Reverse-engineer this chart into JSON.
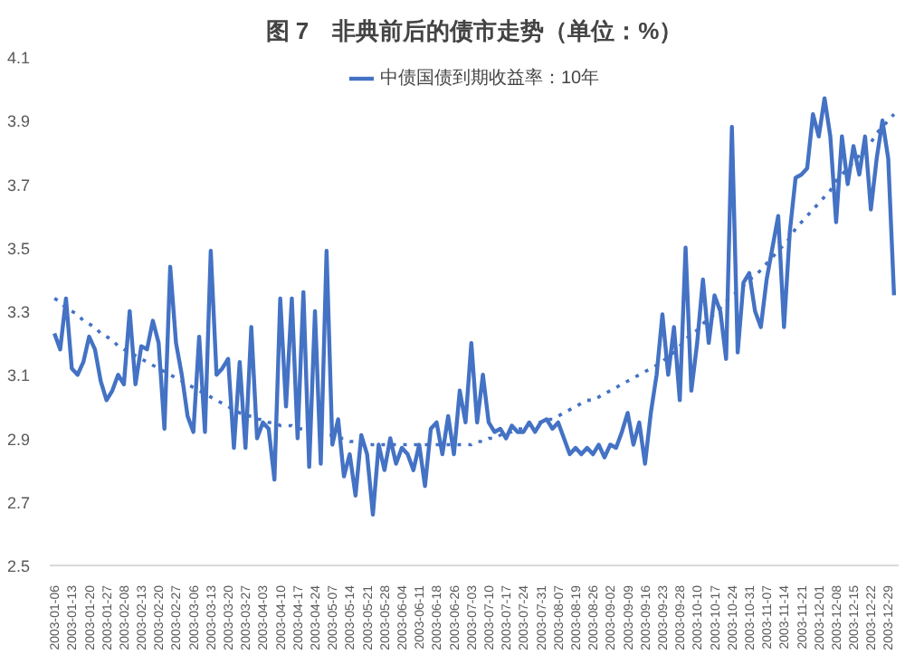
{
  "chart_data": {
    "type": "line",
    "title": "图 7　非典前后的债市走势（单位：%）",
    "categories": [
      "2003-01-06",
      null,
      null,
      "2003-01-13",
      null,
      null,
      "2003-01-20",
      null,
      null,
      "2003-01-27",
      null,
      null,
      "2003-02-08",
      null,
      null,
      "2003-02-13",
      null,
      null,
      "2003-02-20",
      null,
      null,
      "2003-02-27",
      null,
      null,
      "2003-03-06",
      null,
      null,
      "2003-03-13",
      null,
      null,
      "2003-03-20",
      null,
      null,
      "2003-03-27",
      null,
      null,
      "2003-04-03",
      null,
      null,
      "2003-04-10",
      null,
      null,
      "2003-04-17",
      null,
      null,
      "2003-04-24",
      null,
      null,
      "2003-05-07",
      null,
      null,
      "2003-05-14",
      null,
      null,
      "2003-05-21",
      null,
      null,
      "2003-05-28",
      null,
      null,
      "2003-06-04",
      null,
      null,
      "2003-06-11",
      null,
      null,
      "2003-06-18",
      null,
      null,
      "2003-06-26",
      null,
      null,
      "2003-07-03",
      null,
      null,
      "2003-07-10",
      null,
      null,
      "2003-07-17",
      null,
      null,
      "2003-07-24",
      null,
      null,
      "2003-07-31",
      null,
      null,
      "2003-08-07",
      null,
      null,
      "2003-08-19",
      null,
      null,
      "2003-08-26",
      null,
      null,
      "2003-09-02",
      null,
      null,
      "2003-09-09",
      null,
      null,
      "2003-09-16",
      null,
      null,
      "2003-09-23",
      null,
      null,
      "2003-09-28",
      null,
      null,
      "2003-10-10",
      null,
      null,
      "2003-10-17",
      null,
      null,
      "2003-10-24",
      null,
      null,
      "2003-10-31",
      null,
      null,
      "2003-11-07",
      null,
      null,
      "2003-11-14",
      null,
      null,
      "2003-11-21",
      null,
      null,
      "2003-12-01",
      null,
      null,
      "2003-12-08",
      null,
      null,
      "2003-12-15",
      null,
      null,
      "2003-12-22",
      null,
      null,
      "2003-12-29",
      null
    ],
    "series": [
      {
        "name": "中债国债到期收益率：10年",
        "color": "#4472c4",
        "values": [
          3.23,
          3.18,
          3.34,
          3.12,
          3.1,
          3.14,
          3.22,
          3.18,
          3.08,
          3.02,
          3.05,
          3.1,
          3.07,
          3.3,
          3.07,
          3.19,
          3.18,
          3.27,
          3.2,
          2.93,
          3.44,
          3.2,
          3.1,
          2.97,
          2.92,
          3.22,
          2.92,
          3.49,
          3.1,
          3.12,
          3.15,
          2.87,
          3.14,
          2.87,
          3.25,
          2.9,
          2.95,
          2.93,
          2.77,
          3.34,
          3.0,
          3.34,
          2.9,
          3.36,
          2.81,
          3.3,
          2.82,
          3.49,
          2.88,
          2.96,
          2.78,
          2.85,
          2.72,
          2.91,
          2.85,
          2.66,
          2.88,
          2.8,
          2.9,
          2.82,
          2.87,
          2.85,
          2.8,
          2.88,
          2.75,
          2.93,
          2.95,
          2.85,
          2.97,
          2.85,
          3.05,
          2.95,
          3.2,
          2.95,
          3.1,
          2.95,
          2.92,
          2.93,
          2.9,
          2.94,
          2.92,
          2.92,
          2.95,
          2.92,
          2.95,
          2.96,
          2.93,
          2.95,
          2.9,
          2.85,
          2.87,
          2.85,
          2.87,
          2.85,
          2.88,
          2.84,
          2.88,
          2.87,
          2.92,
          2.98,
          2.88,
          2.95,
          2.82,
          2.98,
          3.1,
          3.29,
          3.1,
          3.25,
          3.02,
          3.5,
          3.05,
          3.2,
          3.4,
          3.2,
          3.35,
          3.3,
          3.15,
          3.88,
          3.17,
          3.39,
          3.42,
          3.3,
          3.25,
          3.4,
          3.5,
          3.6,
          3.25,
          3.55,
          3.72,
          3.73,
          3.75,
          3.92,
          3.85,
          3.97,
          3.85,
          3.58,
          3.85,
          3.7,
          3.82,
          3.73,
          3.85,
          3.62,
          3.78,
          3.9,
          3.78,
          3.35
        ]
      },
      {
        "type": "line",
        "line_style": "dotted",
        "color": "#4472c4",
        "values": [
          3.34,
          3.33,
          3.31,
          3.3,
          3.29,
          3.27,
          3.26,
          3.25,
          3.23,
          3.22,
          3.21,
          3.19,
          3.18,
          3.17,
          3.16,
          3.15,
          3.14,
          3.13,
          3.12,
          3.11,
          3.1,
          3.09,
          3.08,
          3.07,
          3.06,
          3.05,
          3.04,
          3.03,
          3.02,
          3.01,
          3.0,
          2.99,
          2.98,
          2.97,
          2.97,
          2.96,
          2.96,
          2.95,
          2.95,
          2.94,
          2.94,
          2.94,
          2.93,
          2.93,
          2.92,
          2.92,
          2.91,
          2.91,
          2.91,
          2.9,
          2.9,
          2.89,
          2.89,
          2.88,
          2.88,
          2.88,
          2.88,
          2.88,
          2.88,
          2.88,
          2.88,
          2.88,
          2.88,
          2.88,
          2.88,
          2.88,
          2.88,
          2.88,
          2.88,
          2.88,
          2.88,
          2.88,
          2.88,
          2.89,
          2.89,
          2.9,
          2.9,
          2.91,
          2.92,
          2.92,
          2.93,
          2.93,
          2.94,
          2.95,
          2.95,
          2.96,
          2.96,
          2.97,
          2.98,
          2.99,
          3.0,
          3.01,
          3.02,
          3.02,
          3.03,
          3.04,
          3.05,
          3.06,
          3.07,
          3.08,
          3.09,
          3.1,
          3.11,
          3.12,
          3.13,
          3.14,
          3.16,
          3.17,
          3.19,
          3.21,
          3.23,
          3.24,
          3.26,
          3.28,
          3.29,
          3.31,
          3.33,
          3.35,
          3.36,
          3.38,
          3.4,
          3.41,
          3.43,
          3.45,
          3.47,
          3.49,
          3.51,
          3.53,
          3.56,
          3.58,
          3.6,
          3.62,
          3.64,
          3.66,
          3.68,
          3.71,
          3.73,
          3.75,
          3.77,
          3.79,
          3.81,
          3.83,
          3.86,
          3.88,
          3.9,
          3.92
        ]
      }
    ],
    "ylim": [
      2.5,
      4.1
    ],
    "yticks": [
      2.5,
      2.7,
      2.9,
      3.1,
      3.3,
      3.5,
      3.7,
      3.9,
      4.1
    ],
    "legend": "top"
  }
}
